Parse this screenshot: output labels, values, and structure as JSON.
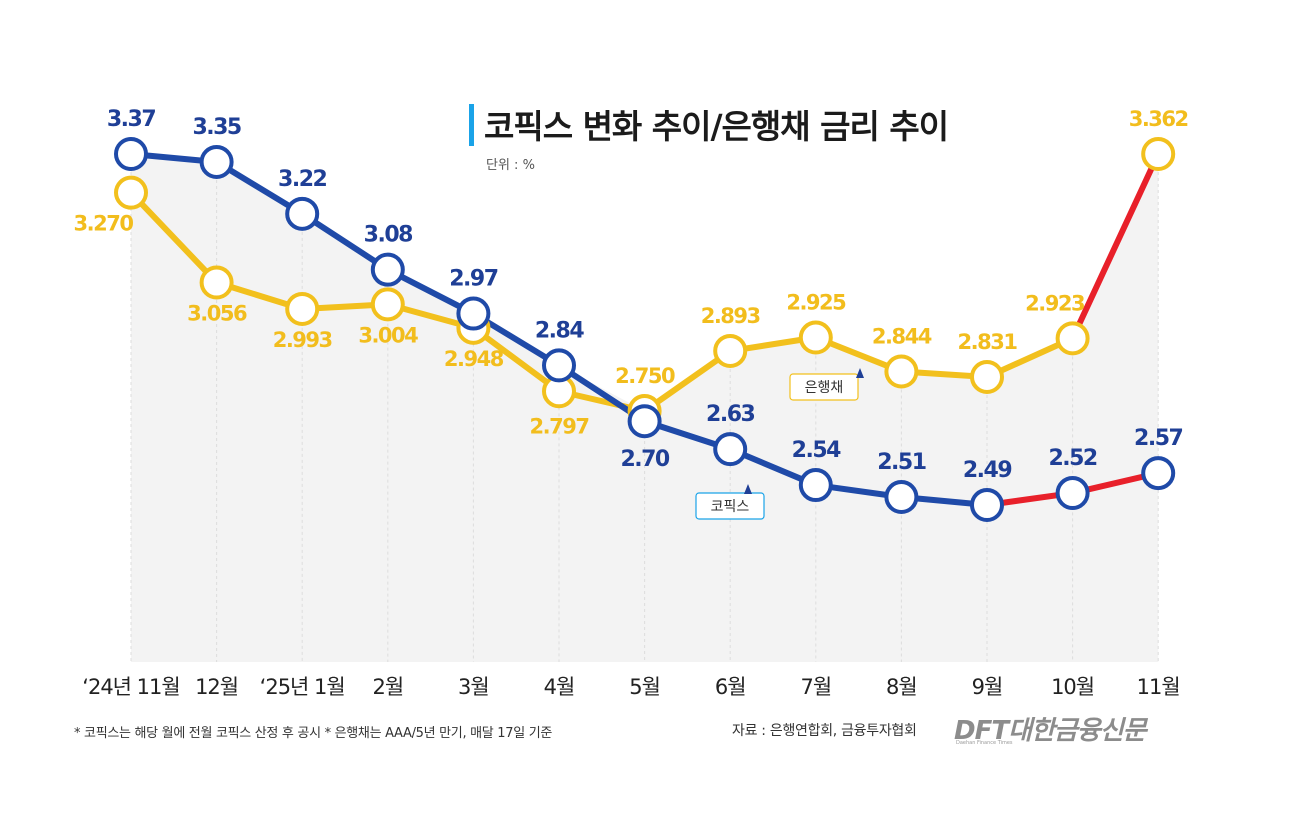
{
  "header": {
    "title": "코픽스 변화 추이/은행채 금리 추이",
    "unit": "단위 : %"
  },
  "footer": {
    "footnote": "* 코픽스는 해당 월에 전월 코픽스 산정 후 공시 * 은행채는 AAA/5년 만기, 매달 17일 기준",
    "source": "자료 : 은행연합회, 금융투자협회",
    "logo_text": "DFT대한금융신문",
    "logo_sub": "Daehan Finance Times"
  },
  "colors": {
    "cofix": "#1f4aa8",
    "cofix_label": "#1f3f96",
    "bank_bond": "#f2c01d",
    "bank_bond_label": "#f2bd1d",
    "highlight": "#e8202a",
    "area": "#f3f3f3",
    "gridline": "#dddddd",
    "title_bar": "#1aa3e8"
  },
  "chart_data": {
    "type": "line",
    "title": "코픽스 변화 추이/은행채 금리 추이",
    "unit": "%",
    "categories": [
      "‘24년 11월",
      "12월",
      "‘25년 1월",
      "2월",
      "3월",
      "4월",
      "5월",
      "6월",
      "7월",
      "8월",
      "9월",
      "10월",
      "11월"
    ],
    "series": [
      {
        "name": "코픽스",
        "values": [
          3.37,
          3.35,
          3.22,
          3.08,
          2.97,
          2.84,
          2.7,
          2.63,
          2.54,
          2.51,
          2.49,
          2.52,
          2.57
        ],
        "labels": [
          "3.37",
          "3.35",
          "3.22",
          "3.08",
          "2.97",
          "2.84",
          "2.70",
          "2.63",
          "2.54",
          "2.51",
          "2.49",
          "2.52",
          "2.57"
        ],
        "highlight_from_index": 10
      },
      {
        "name": "은행채",
        "values": [
          3.27,
          3.056,
          2.993,
          3.004,
          2.948,
          2.797,
          2.75,
          2.893,
          2.925,
          2.844,
          2.831,
          2.923,
          3.362
        ],
        "labels": [
          "3.270",
          "3.056",
          "2.993",
          "3.004",
          "2.948",
          "2.797",
          "2.750",
          "2.893",
          "2.925",
          "2.844",
          "2.831",
          "2.923",
          "3.362"
        ],
        "highlight_from_index": 11
      }
    ],
    "callouts": [
      {
        "series": "은행채",
        "text": "은행채"
      },
      {
        "series": "코픽스",
        "text": "코픽스"
      }
    ],
    "ylim_cofix": [
      2.49,
      3.37
    ],
    "ylim_bond": [
      2.75,
      3.362
    ],
    "grid": "vertical",
    "legend": "inline callouts"
  }
}
